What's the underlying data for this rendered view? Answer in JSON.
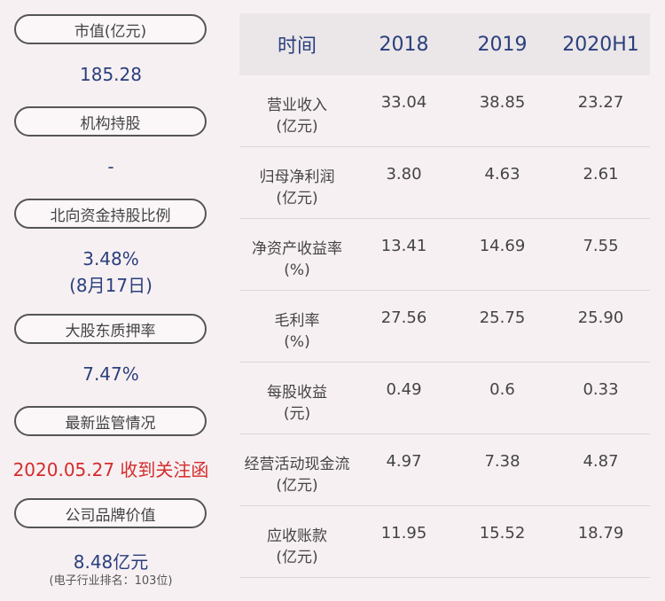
{
  "left_panel": [
    {
      "label": "市值(亿元)",
      "value": "185.28"
    },
    {
      "label": "机构持股",
      "value": "-"
    },
    {
      "label": "北向资金持股比例",
      "value": "3.48%",
      "value2": "(8月17日)"
    },
    {
      "label": "大股东质押率",
      "value": "7.47%"
    },
    {
      "label": "最新监管情况",
      "value": "2020.05.27 收到关注函"
    },
    {
      "label": "公司品牌价值",
      "value": "8.48亿元",
      "value2": "(电子行业排名：103位)"
    }
  ],
  "table": {
    "headers": [
      "时间",
      "2018",
      "2019",
      "2020H1"
    ],
    "rows": [
      {
        "label": "营业收入",
        "unit": "(亿元)",
        "v": [
          "33.04",
          "38.85",
          "23.27"
        ]
      },
      {
        "label": "归母净利润",
        "unit": "(亿元)",
        "v": [
          "3.80",
          "4.63",
          "2.61"
        ]
      },
      {
        "label": "净资产收益率",
        "unit": "(%)",
        "v": [
          "13.41",
          "14.69",
          "7.55"
        ]
      },
      {
        "label": "毛利率",
        "unit": "(%)",
        "v": [
          "27.56",
          "25.75",
          "25.90"
        ]
      },
      {
        "label": "每股收益",
        "unit": "(元)",
        "v": [
          "0.49",
          "0.6",
          "0.33"
        ]
      },
      {
        "label": "经营活动现金流",
        "unit": "(亿元)",
        "v": [
          "4.97",
          "7.38",
          "4.87"
        ]
      },
      {
        "label": "应收账款",
        "unit": "(亿元)",
        "v": [
          "11.95",
          "15.52",
          "18.79"
        ]
      }
    ]
  }
}
